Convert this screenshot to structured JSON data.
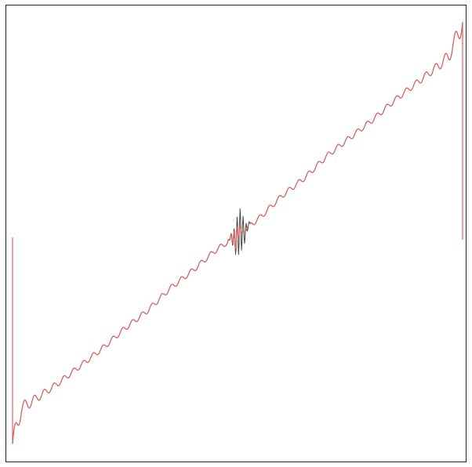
{
  "chart_data": {
    "type": "line",
    "title": "",
    "xlabel": "",
    "ylabel": "",
    "grid": false,
    "legend": "none",
    "xlim": [
      0,
      1
    ],
    "ylim": [
      -1,
      1
    ],
    "trend": {
      "x": [
        0.0,
        0.02,
        0.05,
        0.1,
        0.15,
        0.2,
        0.25,
        0.3,
        0.35,
        0.4,
        0.45,
        0.5,
        0.55,
        0.6,
        0.65,
        0.7,
        0.75,
        0.8,
        0.85,
        0.9,
        0.95,
        0.97,
        1.0
      ],
      "y": [
        -0.93,
        -0.77,
        -0.73,
        -0.66,
        -0.58,
        -0.5,
        -0.41,
        -0.33,
        -0.23,
        -0.15,
        -0.06,
        0.01,
        0.09,
        0.19,
        0.27,
        0.37,
        0.45,
        0.53,
        0.62,
        0.7,
        0.78,
        0.82,
        0.97
      ]
    },
    "series": [
      {
        "color": "#4a4a4a",
        "ripple_amplitude": 0.012,
        "ripple_cycles": 46,
        "bursts": [
          {
            "x": 0.25,
            "amplitude": 0.03,
            "width": 0.004,
            "cycles_per_unit": 450
          },
          {
            "x": 0.504,
            "amplitude": 0.1,
            "width": 0.014,
            "cycles_per_unit": 150
          },
          {
            "x": 0.75,
            "amplitude": 0.035,
            "width": 0.004,
            "cycles_per_unit": 450
          }
        ],
        "edges": [
          {
            "x": 0.0,
            "from": 0.0,
            "to": -0.95
          },
          {
            "x": 1.0,
            "from": 0.98,
            "to": -0.01
          }
        ]
      },
      {
        "color": "#e06060",
        "ripple_amplitude": 0.012,
        "ripple_cycles": 46,
        "bursts": [
          {
            "x": 0.497,
            "amplitude": 0.045,
            "width": 0.01,
            "cycles_per_unit": 150
          }
        ],
        "edges": [
          {
            "x": 0.0,
            "from": 0.0,
            "to": -0.95
          },
          {
            "x": 1.0,
            "from": 0.98,
            "to": -0.01
          }
        ]
      }
    ]
  }
}
